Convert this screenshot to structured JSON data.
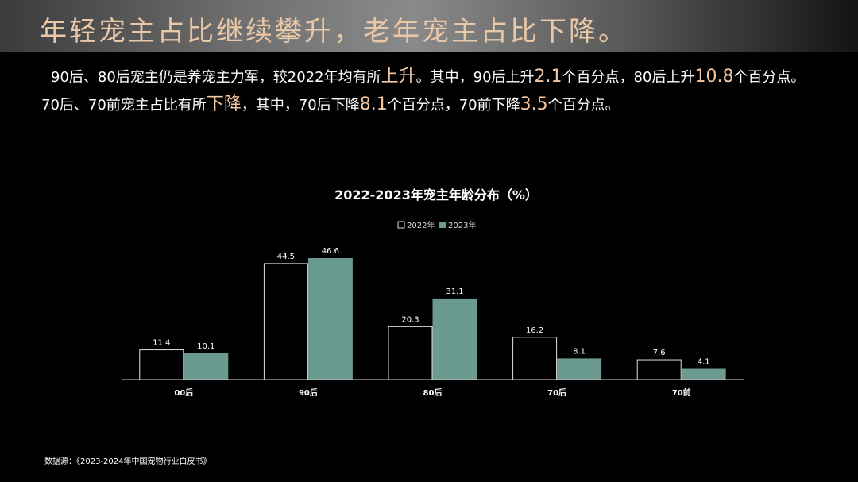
{
  "slide_title": "年轻宠主占比继续攀升，老年宠主占比下降。",
  "summary": {
    "line1": [
      {
        "text": "90后、80后宠主仍是养宠主力军，较2022年均有所",
        "hl": false
      },
      {
        "text": "上升",
        "hl": true
      },
      {
        "text": "。其中，90后上升",
        "hl": false
      },
      {
        "text": "2.1",
        "hl": true
      },
      {
        "text": "个百分点，80后上升",
        "hl": false
      },
      {
        "text": "10.8",
        "hl": true
      },
      {
        "text": "个百分点。",
        "hl": false
      }
    ],
    "line2": [
      {
        "text": "70后、70前宠主占比有所",
        "hl": false
      },
      {
        "text": "下降",
        "hl": true
      },
      {
        "text": "，其中，70后下降",
        "hl": false
      },
      {
        "text": "8.1",
        "hl": true
      },
      {
        "text": "个百分点，70前下降",
        "hl": false
      },
      {
        "text": "3.5",
        "hl": true
      },
      {
        "text": "个百分点。",
        "hl": false
      }
    ]
  },
  "source": "数据源：《2023-2024年中国宠物行业白皮书》",
  "colors": {
    "series_2022_fill": "#000000",
    "series_2022_stroke": "#e0e0e0",
    "series_2023_fill": "#6b9a90",
    "highlight": "#f3c6a0",
    "title": "#e9c8a8"
  },
  "chart_data": {
    "type": "bar",
    "title": "2022-2023年宠主年龄分布（%）",
    "categories": [
      "00后",
      "90后",
      "80后",
      "70后",
      "70前"
    ],
    "series": [
      {
        "name": "2022年",
        "values": [
          11.4,
          44.5,
          20.3,
          16.2,
          7.6
        ]
      },
      {
        "name": "2023年",
        "values": [
          10.1,
          46.6,
          31.1,
          8.1,
          4.1
        ]
      }
    ],
    "ylim": [
      0,
      46.6
    ],
    "grid": false,
    "legend_position": "top-center",
    "data_labels": true
  }
}
